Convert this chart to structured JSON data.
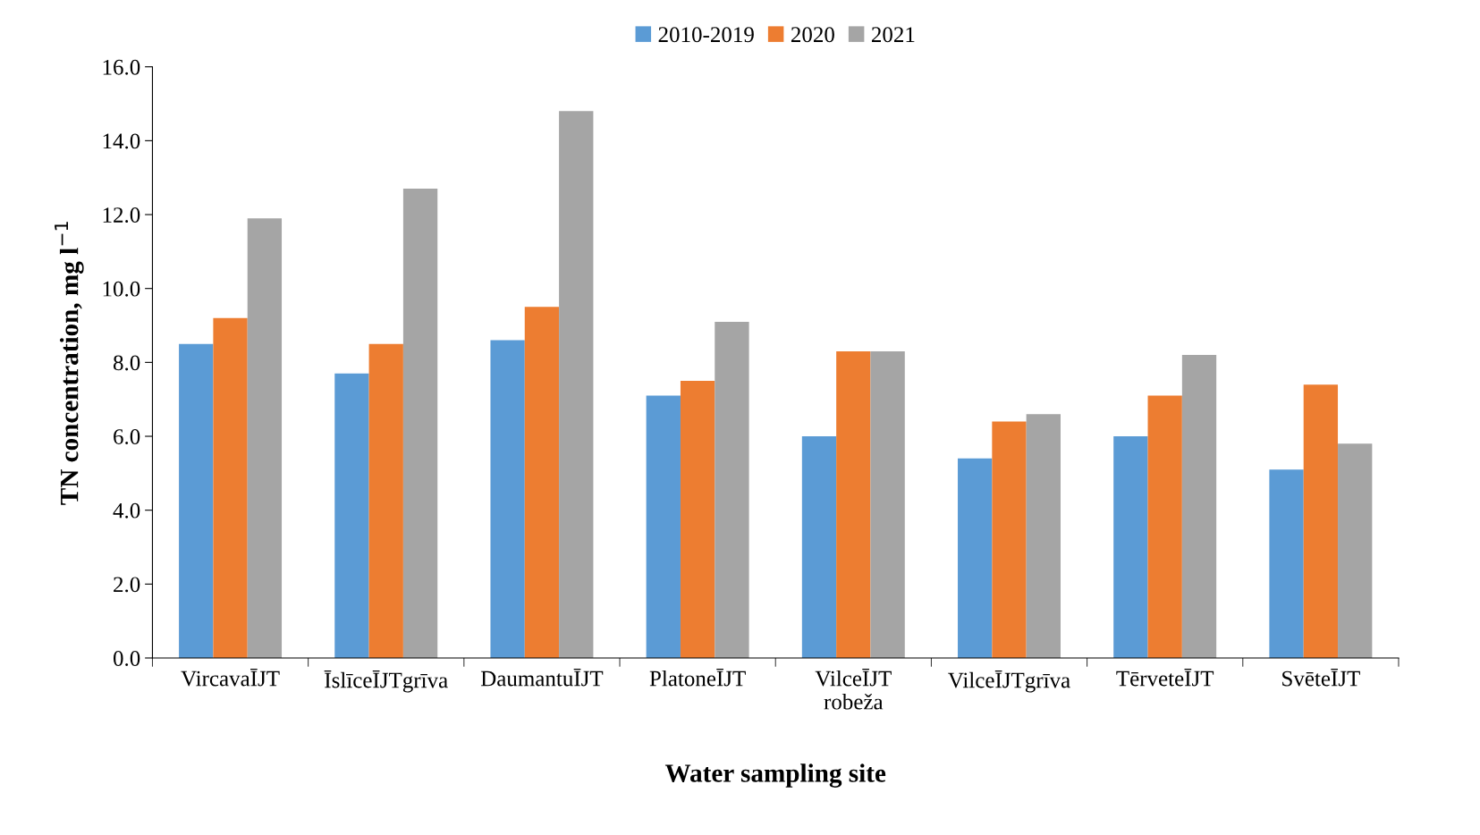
{
  "chart_data": {
    "type": "bar",
    "xlabel": "Water sampling site",
    "ylabel": "TN concentration, mg l$^{−1}$",
    "categories": [
      "VircavaĪJT",
      "ĪslīceĪJTgrīva",
      "DaumantuĪJT",
      "PlatoneĪJT",
      "VilceĪJT\nrobeža",
      "VilceĪJTgrīva",
      "TērveteĪJT",
      "SvēteĪJT"
    ],
    "series": [
      {
        "name": "2010-2019",
        "color": "#5b9bd5",
        "values": [
          8.5,
          7.7,
          8.6,
          7.1,
          6.0,
          5.4,
          6.0,
          5.1
        ]
      },
      {
        "name": "2020",
        "color": "#ed7d31",
        "values": [
          9.2,
          8.5,
          9.5,
          7.5,
          8.3,
          6.4,
          7.1,
          7.4
        ]
      },
      {
        "name": "2021",
        "color": "#a5a5a5",
        "values": [
          11.9,
          12.7,
          14.8,
          9.1,
          8.3,
          6.6,
          8.2,
          5.8
        ]
      }
    ],
    "ylim": [
      0,
      16
    ],
    "yticks": [
      {
        "value": 0,
        "label": "0.0"
      },
      {
        "value": 2,
        "label": "2.0"
      },
      {
        "value": 4,
        "label": "4.0"
      },
      {
        "value": 6,
        "label": "6.0"
      },
      {
        "value": 8,
        "label": "8.0"
      },
      {
        "value": 10,
        "label": "10.0"
      },
      {
        "value": 12,
        "label": "12.0"
      },
      {
        "value": 14,
        "label": "14.0"
      },
      {
        "value": 16,
        "label": "16.0"
      }
    ],
    "grid": false,
    "legend": "top"
  }
}
